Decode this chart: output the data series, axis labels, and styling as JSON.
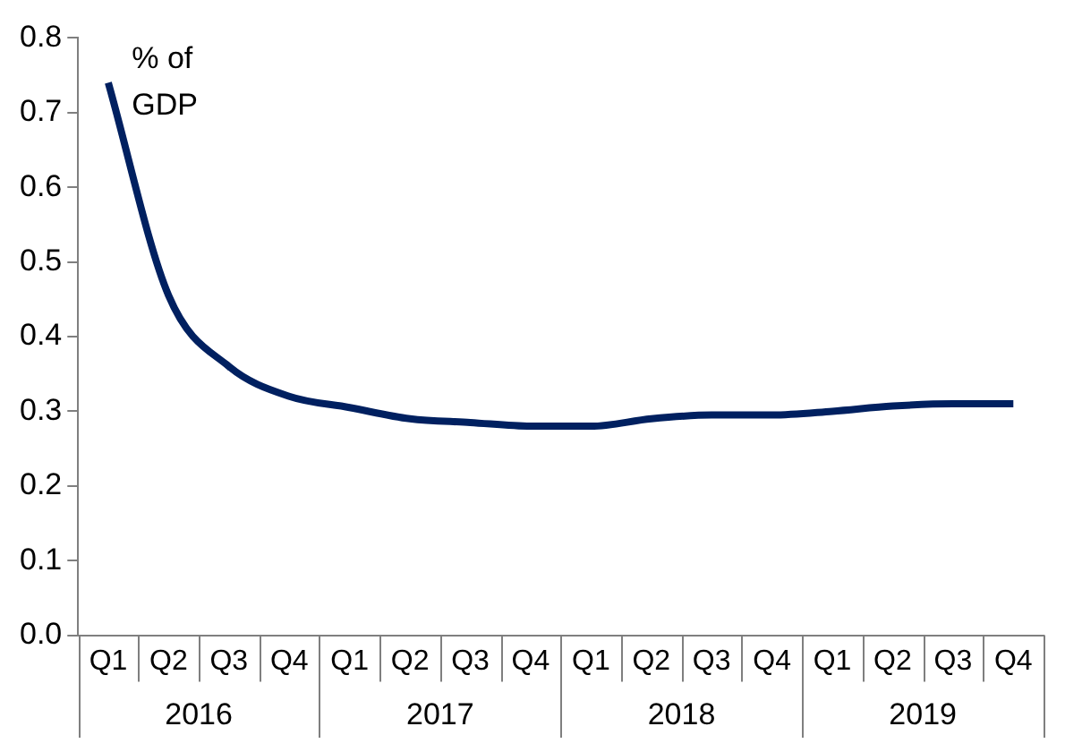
{
  "chart_data": {
    "type": "line",
    "ylabel": "% of GDP",
    "categories": [
      "Q1",
      "Q2",
      "Q3",
      "Q4",
      "Q1",
      "Q2",
      "Q3",
      "Q4",
      "Q1",
      "Q2",
      "Q3",
      "Q4",
      "Q1",
      "Q2",
      "Q3",
      "Q4"
    ],
    "series": [
      {
        "color": "#002060",
        "values": [
          0.74,
          0.455,
          0.36,
          0.32,
          0.305,
          0.29,
          0.285,
          0.28,
          0.28,
          0.29,
          0.295,
          0.295,
          0.3,
          0.307,
          0.31,
          0.31
        ]
      }
    ],
    "annotations": [
      "2016",
      "2017",
      "2018",
      "2019"
    ],
    "ylim": [
      0,
      0.8
    ],
    "yticks": [
      {
        "value": 0,
        "label": "0.0"
      },
      0.1,
      0.2,
      0.3,
      0.4,
      0.5,
      0.6,
      0.7,
      0.8
    ],
    "grid": false,
    "legend": false,
    "marker": "none",
    "line_style": "solid"
  }
}
